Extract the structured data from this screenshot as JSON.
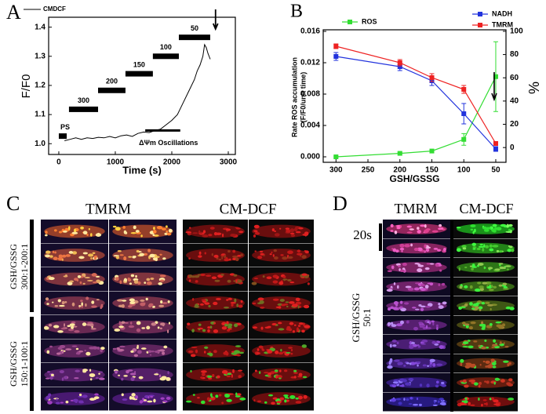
{
  "chart_data": [
    {
      "type": "line",
      "panel_label": "A",
      "x_label": "Time (s)",
      "y_label": "F/F0",
      "xlim": [
        -180,
        3125
      ],
      "xticks": [
        0,
        1000,
        2000,
        3000
      ],
      "ylim": [
        0.963,
        1.434
      ],
      "yticks": [
        {
          "value": 1.0,
          "label": "1.0"
        },
        {
          "value": 1.1,
          "label": "1.1"
        },
        {
          "value": 1.2,
          "label": "1.2"
        },
        {
          "value": 1.3,
          "label": "1.3"
        },
        {
          "value": 1.4,
          "label": "1.4"
        }
      ],
      "series": [
        {
          "name": "CMDCF",
          "color": "#000000",
          "x": [
            100,
            200,
            300,
            400,
            500,
            600,
            700,
            800,
            900,
            1000,
            1100,
            1200,
            1300,
            1400,
            1500,
            1600,
            1700,
            1800,
            1900,
            2000,
            2100,
            2200,
            2300,
            2400,
            2450,
            2500,
            2550,
            2580,
            2610,
            2640,
            2680
          ],
          "values": [
            1.01,
            1.015,
            1.02,
            1.015,
            1.02,
            1.018,
            1.022,
            1.02,
            1.025,
            1.02,
            1.027,
            1.03,
            1.025,
            1.035,
            1.04,
            1.038,
            1.045,
            1.05,
            1.065,
            1.08,
            1.1,
            1.14,
            1.18,
            1.22,
            1.25,
            1.27,
            1.3,
            1.34,
            1.33,
            1.31,
            1.29
          ]
        }
      ],
      "annotations": [
        {
          "text": "PS",
          "x0": 0,
          "x1": 140,
          "y": 1.026
        },
        {
          "text": "300",
          "x0": 180,
          "x1": 695,
          "y": 1.118
        },
        {
          "text": "200",
          "x0": 695,
          "x1": 1180,
          "y": 1.183
        },
        {
          "text": "150",
          "x0": 1180,
          "x1": 1665,
          "y": 1.24
        },
        {
          "text": "100",
          "x0": 1665,
          "x1": 2125,
          "y": 1.3
        },
        {
          "text": "50",
          "x0": 2125,
          "x1": 2680,
          "y": 1.365
        },
        {
          "text": "ΔΨm Oscillations",
          "x0": 1530,
          "x1": 2150,
          "y": 1.04
        }
      ]
    },
    {
      "type": "line",
      "panel_label": "B",
      "x_label": "GSH/GSSG",
      "y_label": [
        "Rate ROS accumulation",
        "(F/F0/unit time)"
      ],
      "y2_label": "%",
      "xlim": [
        320,
        34
      ],
      "xticks": [
        300,
        250,
        200,
        150,
        100,
        50
      ],
      "ylim": [
        -0.0007,
        0.0162
      ],
      "yticks": [
        {
          "value": 0,
          "label": "0.000"
        },
        {
          "value": 0.004,
          "label": "0.004"
        },
        {
          "value": 0.008,
          "label": "0.008"
        },
        {
          "value": 0.012,
          "label": "0.012"
        },
        {
          "value": 0.016,
          "label": "0.016"
        }
      ],
      "y2lim": [
        -12.7,
        101.3
      ],
      "y2ticks": [
        0,
        20,
        40,
        60,
        80,
        100
      ],
      "x": [
        300,
        200,
        150,
        100,
        50
      ],
      "series": [
        {
          "name": "ROS",
          "color": "#33dd33",
          "axis": "y2",
          "values": [
            -8,
            -5,
            -3,
            7,
            61
          ],
          "errors": [
            0.5,
            1,
            1,
            5,
            30
          ]
        },
        {
          "name": "NADH",
          "color": "#2233dd",
          "values": [
            0.0128,
            0.0115,
            0.0097,
            0.0055,
            0.001
          ],
          "errors": [
            0.0005,
            0.0005,
            0.0006,
            0.0013,
            0.0003
          ]
        },
        {
          "name": "TMRM",
          "color": "#ee2222",
          "values": [
            0.0141,
            0.012,
            0.0101,
            0.0086,
            0.0017
          ],
          "errors": [
            0.0003,
            0.0004,
            0.0005,
            0.0005,
            0.0002
          ]
        }
      ]
    }
  ],
  "image_panels": [
    {
      "label": "C",
      "columns": [
        "TMRM",
        "CM-DCF"
      ],
      "row_groups": [
        [
          "GSH/GSSG",
          "300:1-200:1"
        ],
        [
          "GSH/GSSG",
          "150:1-100:1"
        ]
      ]
    },
    {
      "label": "D",
      "columns": [
        "TMRM",
        "CM-DCF"
      ],
      "scale_bar": "20s",
      "row_groups": [
        [
          "GSH/GSSG",
          "50:1"
        ]
      ]
    }
  ]
}
